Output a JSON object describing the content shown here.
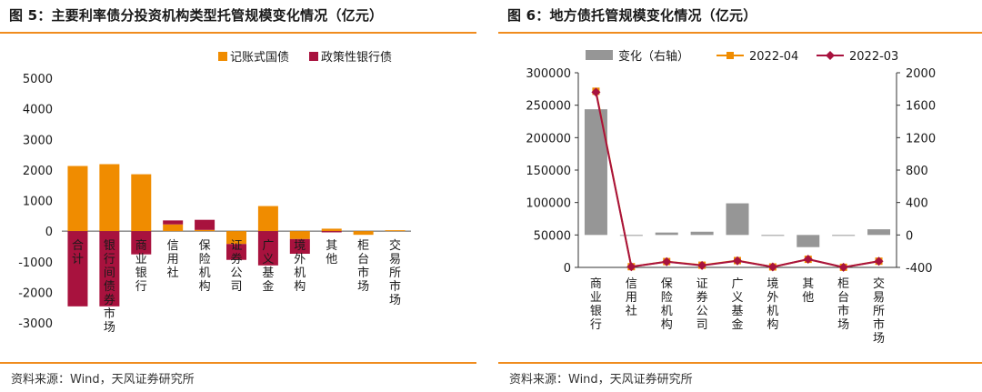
{
  "fig5": {
    "title": "图 5：主要利率债分投资机构类型托管规模变化情况（亿元）",
    "source": "资料来源：Wind，天风证券研究所"
  },
  "fig6": {
    "title": "图 6：地方债托管规模变化情况（亿元）",
    "source": "资料来源：Wind，天风证券研究所"
  },
  "colors": {
    "orange": "#f08c00",
    "crimson": "#a8123e",
    "gray": "#969696",
    "marker_orange": "#f08c00"
  },
  "chart_data": [
    {
      "id": "fig5",
      "type": "bar",
      "stacked": true,
      "title": "图 5：主要利率债分投资机构类型托管规模变化情况（亿元）",
      "categories": [
        "合计",
        "银行间债券市场",
        "商业银行",
        "信用社",
        "保险机构",
        "证券公司",
        "广义基金",
        "境外机构",
        "其他",
        "柜台市场",
        "交易所市场"
      ],
      "series": [
        {
          "name": "记账式国债",
          "color": "#f08c00",
          "values": [
            2130,
            2190,
            1860,
            220,
            40,
            -420,
            820,
            -260,
            80,
            -120,
            30
          ]
        },
        {
          "name": "政策性银行债",
          "color": "#a8123e",
          "values": [
            -2460,
            -2460,
            -760,
            130,
            330,
            -520,
            -1120,
            -480,
            -40,
            0,
            0
          ]
        }
      ],
      "ylim": [
        -3000,
        5000
      ],
      "yticks": [
        -3000,
        -2000,
        -1000,
        0,
        1000,
        2000,
        3000,
        4000,
        5000
      ],
      "legend_position": "top-right"
    },
    {
      "id": "fig6",
      "type": "bar+line",
      "title": "图 6：地方债托管规模变化情况（亿元）",
      "categories": [
        "商业银行",
        "信用社",
        "保险机构",
        "证券公司",
        "广义基金",
        "境外机构",
        "其他",
        "柜台市场",
        "交易所市场"
      ],
      "bar_series": {
        "name": "变化（右轴）",
        "color": "#969696",
        "values": [
          1550,
          -10,
          30,
          40,
          390,
          -5,
          -150,
          0,
          70
        ]
      },
      "line_series": [
        {
          "name": "2022-04",
          "color": "#f08c00",
          "values": [
            271500,
            1100,
            9000,
            3400,
            10500,
            700,
            12500,
            200,
            9600
          ]
        },
        {
          "name": "2022-03",
          "color": "#a8123e",
          "values": [
            270000,
            1110,
            8700,
            3000,
            10100,
            700,
            12600,
            200,
            9500
          ]
        }
      ],
      "y_left": {
        "lim": [
          0,
          300000
        ],
        "ticks": [
          0,
          50000,
          100000,
          150000,
          200000,
          250000,
          300000
        ]
      },
      "y_right": {
        "lim": [
          -400,
          2000
        ],
        "ticks": [
          -400,
          0,
          400,
          800,
          1200,
          1600,
          2000
        ]
      },
      "legend_position": "top"
    }
  ]
}
